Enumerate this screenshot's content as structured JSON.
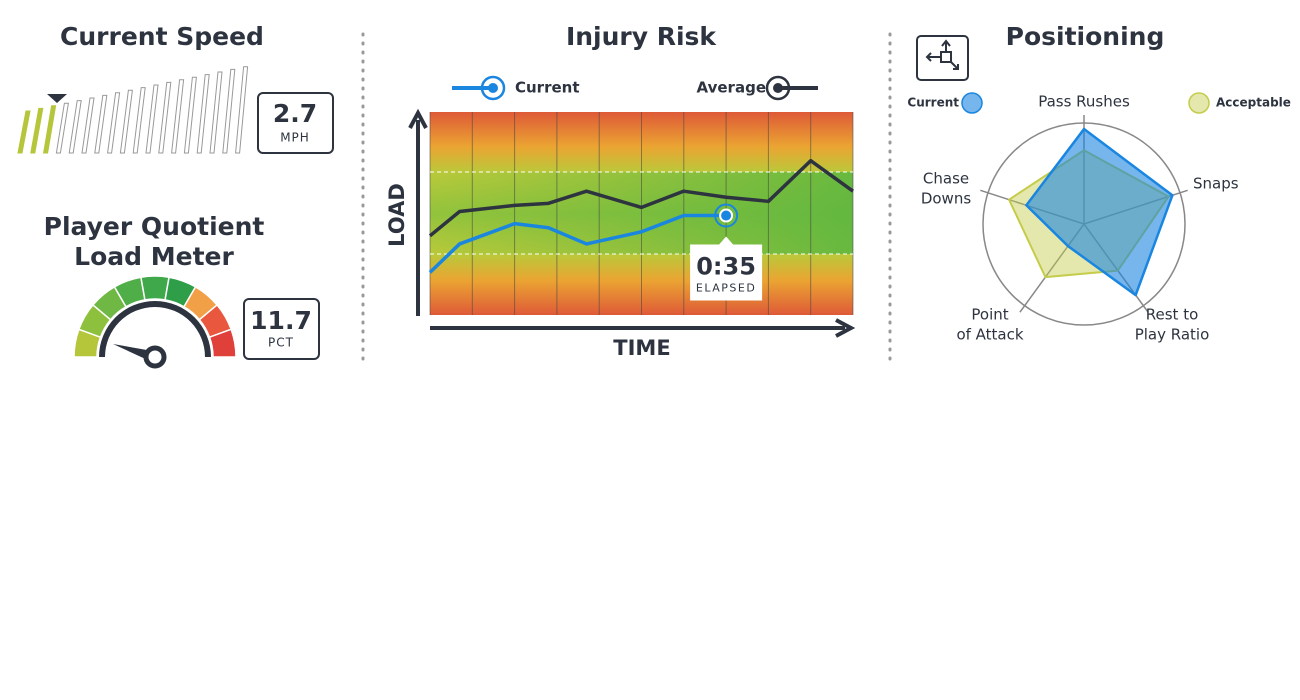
{
  "speed": {
    "title": "Current Speed",
    "value": "2.7",
    "unit": "MPH"
  },
  "load_meter": {
    "title_lines": [
      "Player Quotient",
      "Load Meter"
    ],
    "value": "11.7",
    "unit": "PCT"
  },
  "chart_data": [
    {
      "type": "line",
      "title": "Injury Risk",
      "x_label": "TIME",
      "y_label": "LOAD",
      "x": [
        0,
        0.7,
        2,
        2.8,
        3.7,
        5,
        6,
        7,
        8,
        9,
        10
      ],
      "xlim": [
        0,
        10
      ],
      "ylim": [
        0,
        100
      ],
      "series": [
        {
          "name": "Current",
          "color": "#1a86e0",
          "values": [
            21,
            35,
            45,
            43,
            35,
            41,
            49,
            49,
            null,
            null,
            null
          ]
        },
        {
          "name": "Average",
          "color": "#2d3440",
          "values": [
            39,
            51,
            54,
            55,
            61,
            53,
            61,
            58,
            56,
            76,
            61
          ]
        }
      ],
      "annotation": {
        "text": "0:35",
        "subtext": "ELAPSED"
      }
    },
    {
      "type": "radar",
      "title": "Positioning",
      "categories": [
        [
          "Pass Rushes"
        ],
        [
          "Snaps"
        ],
        [
          "Rest to",
          "Play Ratio"
        ],
        [
          "Point",
          "of Attack"
        ],
        [
          "Chase",
          "Downs"
        ]
      ],
      "rlim": [
        0,
        100
      ],
      "series": [
        {
          "name": "Acceptable",
          "color": "#c4cc4a",
          "values": [
            73,
            88,
            57,
            65,
            78
          ]
        },
        {
          "name": "Current",
          "color": "#1a86e0",
          "values": [
            94,
            92,
            87,
            27,
            60
          ]
        }
      ]
    }
  ]
}
